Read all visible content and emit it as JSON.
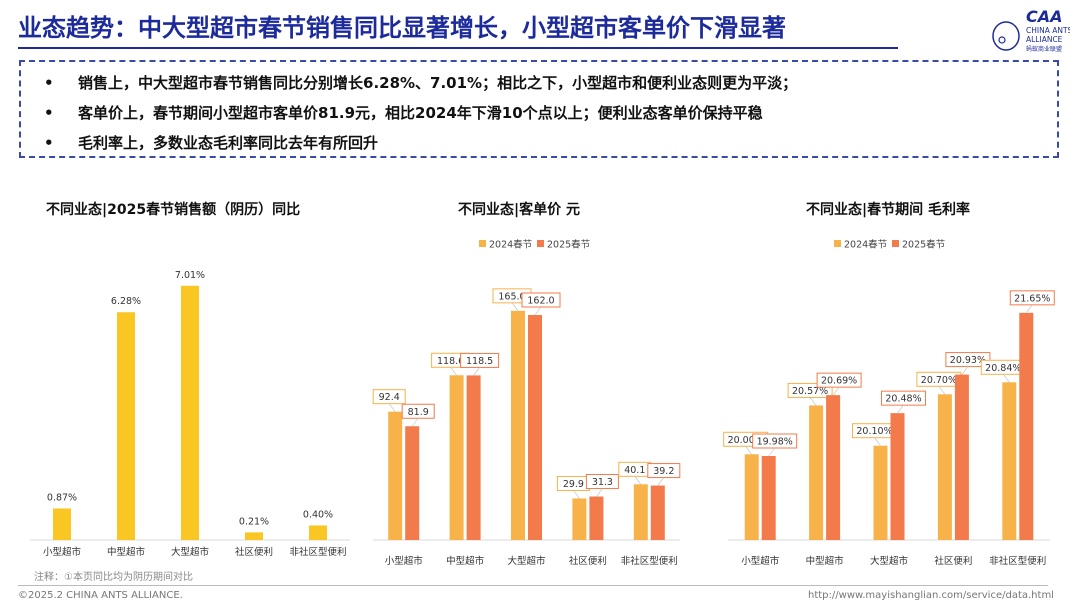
{
  "title": "业态趋势：中大型超市春节销售同比显著增长，小型超市客单价下滑显著",
  "logo": {
    "mark": "CAA",
    "line1": "CHINA ANTS",
    "line2": "ALLIANCE",
    "line3": "蚂蚁商业联盟"
  },
  "bullets": [
    "销售上，中大型超市春节销售同比分别增长6.28%、7.01%；相比之下，小型超市和便利业态则更为平淡；",
    "客单价上，春节期间小型超市客单价81.9元，相比2024年下滑10个点以上；便利业态客单价保持平稳",
    "毛利率上，多数业态毛利率同比去年有所回升"
  ],
  "bullet_symbol": "•",
  "colors": {
    "title": "#1d2b9a",
    "bar_single": "#f9c623",
    "series_2024": "#f8b24a",
    "series_2025": "#f37a4a"
  },
  "chart_data": [
    {
      "type": "bar",
      "title": "不同业态|2025春节销售额（阴历）同比",
      "categories": [
        "小型超市",
        "中型超市",
        "大型超市",
        "社区便利",
        "非社区型便利"
      ],
      "values": [
        0.87,
        6.28,
        7.01,
        0.21,
        0.4
      ],
      "value_labels": [
        "0.87%",
        "6.28%",
        "7.01%",
        "0.21%",
        "0.40%"
      ],
      "ylim": [
        0,
        7.5
      ],
      "grid": false
    },
    {
      "type": "bar",
      "title": "不同业态|客单价 元",
      "categories": [
        "小型超市",
        "中型超市",
        "大型超市",
        "社区便利",
        "非社区型便利"
      ],
      "series": [
        {
          "name": "2024春节",
          "values": [
            92.4,
            118.6,
            165.0,
            29.9,
            40.1
          ],
          "labels": [
            "92.4",
            "118.6",
            "165.0",
            "29.9",
            "40.1"
          ]
        },
        {
          "name": "2025春节",
          "values": [
            81.9,
            118.5,
            162.0,
            31.3,
            39.2
          ],
          "labels": [
            "81.9",
            "118.5",
            "162.0",
            "31.3",
            "39.2"
          ]
        }
      ],
      "ylim": [
        0,
        180
      ],
      "legend": "top-center",
      "grid": false
    },
    {
      "type": "bar",
      "title": "不同业态|春节期间 毛利率",
      "categories": [
        "小型超市",
        "中型超市",
        "大型超市",
        "社区便利",
        "非社区型便利"
      ],
      "series": [
        {
          "name": "2024春节",
          "values": [
            20.0,
            20.57,
            20.1,
            20.7,
            20.84
          ],
          "labels": [
            "20.00%",
            "20.57%",
            "20.10%",
            "20.70%",
            "20.84%"
          ]
        },
        {
          "name": "2025春节",
          "values": [
            19.98,
            20.69,
            20.48,
            20.93,
            21.65
          ],
          "labels": [
            "19.98%",
            "20.69%",
            "20.48%",
            "20.93%",
            "21.65%"
          ]
        }
      ],
      "ylim": [
        19.0,
        21.8
      ],
      "legend": "top-center",
      "grid": false
    }
  ],
  "note": "注释：①本页同比均为阴历期间对比",
  "copyright": "©2025.2 CHINA ANTS ALLIANCE.",
  "url": "http://www.mayishanglian.com/service/data.html"
}
